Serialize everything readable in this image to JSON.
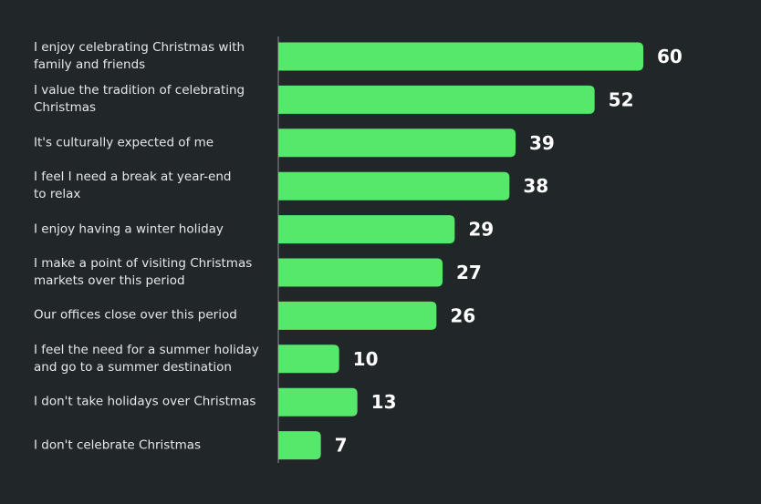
{
  "chart_data": {
    "type": "barh",
    "categories": [
      "I enjoy celebrating Christmas with\nfamily and friends",
      "I value the tradition of celebrating\nChristmas",
      "It's culturally expected of me",
      "I feel I need a break at year-end\nto relax",
      "I enjoy having a winter holiday",
      "I make a point of visiting Christmas\nmarkets over this period",
      "Our offices close over this period",
      "I feel the need for a summer holiday\nand go to a summer destination",
      "I don't take holidays over Christmas",
      "I don't celebrate Christmas"
    ],
    "values": [
      60,
      52,
      39,
      38,
      29,
      27,
      26,
      10,
      13,
      7
    ],
    "color": "#55e86a",
    "xlim": [
      0,
      60
    ]
  }
}
